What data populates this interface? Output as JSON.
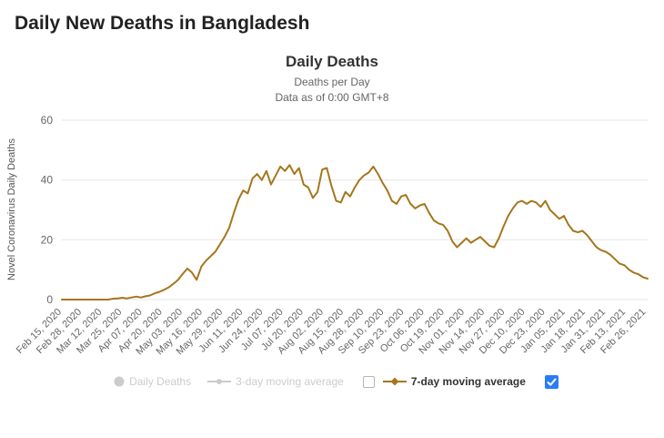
{
  "page": {
    "title": "Daily New Deaths in Bangladesh"
  },
  "chart_data": {
    "type": "line",
    "title": "Daily Deaths",
    "subtitle1": "Deaths per Day",
    "subtitle2": "Data as of 0:00 GMT+8",
    "ylabel": "Novel Coronavirus Daily Deaths",
    "ylim": [
      0,
      60
    ],
    "yticks": [
      0,
      20,
      40,
      60
    ],
    "x_tick_interval_days": 13,
    "x_tick_labels": [
      "Feb 15, 2020",
      "Feb 28, 2020",
      "Mar 12, 2020",
      "Mar 25, 2020",
      "Apr 07, 2020",
      "Apr 20, 2020",
      "May 03, 2020",
      "May 16, 2020",
      "May 29, 2020",
      "Jun 11, 2020",
      "Jun 24, 2020",
      "Jul 07, 2020",
      "Jul 20, 2020",
      "Aug 02, 2020",
      "Aug 15, 2020",
      "Aug 28, 2020",
      "Sep 10, 2020",
      "Sep 23, 2020",
      "Oct 06, 2020",
      "Oct 19, 2020",
      "Nov 01, 2020",
      "Nov 14, 2020",
      "Nov 27, 2020",
      "Dec 10, 2020",
      "Dec 23, 2020",
      "Jan 05, 2021",
      "Jan 18, 2021",
      "Jan 31, 2021",
      "Feb 13, 2021",
      "Feb 26, 2021"
    ],
    "series": [
      {
        "name": "Daily Deaths",
        "visible": false,
        "color": "#cccccc"
      },
      {
        "name": "3-day moving average",
        "visible": false,
        "color": "#cccccc"
      },
      {
        "name": "7-day moving average",
        "visible": true,
        "color": "#a5761d",
        "sample_interval_days": 3,
        "values": [
          0,
          0,
          0,
          0,
          0,
          0,
          0,
          0,
          0,
          0,
          0,
          0.3,
          0.4,
          0.6,
          0.4,
          0.7,
          1,
          0.7,
          1.1,
          1.4,
          2.1,
          2.6,
          3.3,
          4.1,
          5.3,
          6.6,
          8.6,
          10.4,
          9,
          6.6,
          11,
          13,
          14.5,
          16,
          18.5,
          21,
          24,
          29,
          33.5,
          36.5,
          35.5,
          40.5,
          42,
          40,
          43,
          38.5,
          41.5,
          44.5,
          43,
          45,
          42,
          44,
          38.5,
          37.5,
          34,
          36,
          43.5,
          44,
          38,
          33,
          32.5,
          36,
          34.5,
          37.5,
          40,
          41.5,
          42.5,
          44.5,
          42,
          39,
          36.5,
          33,
          32,
          34.5,
          35,
          32,
          30.5,
          31.5,
          32,
          29,
          26.5,
          25.5,
          25,
          23,
          19.5,
          17.5,
          19,
          20.5,
          19,
          20,
          21,
          19.5,
          18,
          17.5,
          20.5,
          24.5,
          28,
          30.5,
          32.5,
          33,
          32,
          33,
          32.5,
          31,
          33,
          30,
          28.5,
          27,
          28,
          25,
          23,
          22.5,
          23,
          21.5,
          19.5,
          17.5,
          16.5,
          16,
          15,
          13.5,
          12,
          11.5,
          10,
          9,
          8.5,
          7.5,
          7
        ]
      }
    ],
    "legend": [
      {
        "label": "Daily Deaths",
        "marker": "circle",
        "color": "#cccccc",
        "text_color": "#cccccc",
        "bold": false,
        "checkbox": "none"
      },
      {
        "label": "3-day moving average",
        "marker": "line-circle",
        "color": "#cccccc",
        "text_color": "#cccccc",
        "bold": false,
        "checkbox": "unchecked"
      },
      {
        "label": "7-day moving average",
        "marker": "line-diamond",
        "color": "#a5761d",
        "text_color": "#333333",
        "bold": true,
        "checkbox": "checked"
      }
    ],
    "colors": {
      "grid": "#e6e6e6",
      "axis_text": "#666666",
      "title": "#333333",
      "page_title": "#222222",
      "line": "#a5761d",
      "legend_disabled": "#cccccc",
      "legend_active_text": "#333333",
      "checkbox_checked": "#2a7cf7",
      "checkbox_border": "#b5b5b5"
    },
    "legend_position": "bottom",
    "grid": true
  }
}
